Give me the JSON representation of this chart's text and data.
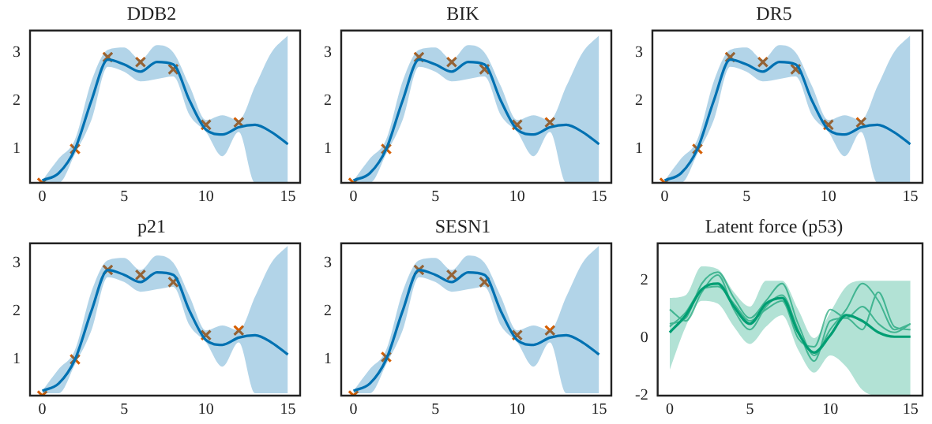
{
  "chart_data": [
    {
      "type": "line",
      "title": "DDB2",
      "x": [
        0,
        1,
        2,
        3,
        4,
        5,
        6,
        7,
        8,
        9,
        10,
        11,
        12,
        13,
        14,
        15
      ],
      "xlim": [
        -0.75,
        15.75
      ],
      "xticks": [
        0,
        5,
        10,
        15
      ],
      "ylim": [
        0.3,
        3.45
      ],
      "yticks": [
        1,
        2,
        3
      ],
      "grid": false,
      "legend": false,
      "marker": "none",
      "series": [
        {
          "color": "#0072b2",
          "values": [
            0.35,
            0.5,
            1.0,
            2.0,
            2.85,
            2.75,
            2.6,
            2.8,
            2.75,
            2.0,
            1.4,
            1.3,
            1.45,
            1.5,
            1.35,
            1.1
          ],
          "lower": [
            0.3,
            0.3,
            0.9,
            1.6,
            2.7,
            2.6,
            2.4,
            2.45,
            2.5,
            1.7,
            1.35,
            0.85,
            1.35,
            0.3,
            0.3,
            0.3
          ],
          "upper": [
            0.35,
            0.8,
            1.2,
            2.4,
            3.05,
            3.1,
            2.85,
            3.15,
            3.0,
            2.3,
            1.6,
            1.7,
            1.6,
            2.3,
            3.0,
            3.35
          ]
        },
        {
          "type": "scatter",
          "color": "#d55e00",
          "marker": "cross",
          "x": [
            0,
            2,
            4,
            6,
            8,
            10,
            12
          ],
          "values": [
            0.3,
            1.0,
            2.9,
            2.8,
            2.65,
            1.5,
            1.55
          ]
        }
      ]
    },
    {
      "type": "line",
      "title": "BIK",
      "x": [
        0,
        1,
        2,
        3,
        4,
        5,
        6,
        7,
        8,
        9,
        10,
        11,
        12,
        13,
        14,
        15
      ],
      "xlim": [
        -0.75,
        15.75
      ],
      "xticks": [
        0,
        5,
        10,
        15
      ],
      "ylim": [
        0.3,
        3.45
      ],
      "yticks": [
        1,
        2,
        3
      ],
      "grid": false,
      "legend": false,
      "marker": "none",
      "series": [
        {
          "color": "#0072b2",
          "values": [
            0.35,
            0.5,
            1.0,
            2.0,
            2.85,
            2.75,
            2.6,
            2.8,
            2.75,
            2.0,
            1.4,
            1.3,
            1.45,
            1.5,
            1.35,
            1.1
          ],
          "lower": [
            0.3,
            0.3,
            0.9,
            1.6,
            2.7,
            2.6,
            2.4,
            2.45,
            2.5,
            1.7,
            1.35,
            0.85,
            1.35,
            0.3,
            0.3,
            0.3
          ],
          "upper": [
            0.35,
            0.8,
            1.2,
            2.4,
            3.05,
            3.1,
            2.85,
            3.15,
            3.0,
            2.3,
            1.6,
            1.7,
            1.6,
            2.3,
            3.0,
            3.35
          ]
        },
        {
          "type": "scatter",
          "color": "#d55e00",
          "marker": "cross",
          "x": [
            0,
            2,
            4,
            6,
            8,
            10,
            12
          ],
          "values": [
            0.3,
            1.0,
            2.9,
            2.8,
            2.65,
            1.5,
            1.55
          ]
        }
      ]
    },
    {
      "type": "line",
      "title": "DR5",
      "x": [
        0,
        1,
        2,
        3,
        4,
        5,
        6,
        7,
        8,
        9,
        10,
        11,
        12,
        13,
        14,
        15
      ],
      "xlim": [
        -0.75,
        15.75
      ],
      "xticks": [
        0,
        5,
        10,
        15
      ],
      "ylim": [
        0.3,
        3.45
      ],
      "yticks": [
        1,
        2,
        3
      ],
      "grid": false,
      "legend": false,
      "marker": "none",
      "series": [
        {
          "color": "#0072b2",
          "values": [
            0.35,
            0.5,
            1.0,
            2.0,
            2.85,
            2.75,
            2.6,
            2.8,
            2.75,
            2.0,
            1.4,
            1.3,
            1.45,
            1.5,
            1.35,
            1.1
          ],
          "lower": [
            0.3,
            0.3,
            0.9,
            1.6,
            2.7,
            2.6,
            2.4,
            2.45,
            2.5,
            1.7,
            1.35,
            0.85,
            1.35,
            0.3,
            0.3,
            0.3
          ],
          "upper": [
            0.35,
            0.8,
            1.2,
            2.4,
            3.05,
            3.1,
            2.85,
            3.15,
            3.0,
            2.3,
            1.6,
            1.7,
            1.6,
            2.3,
            3.0,
            3.35
          ]
        },
        {
          "type": "scatter",
          "color": "#d55e00",
          "marker": "cross",
          "x": [
            0,
            2,
            4,
            6,
            8,
            10,
            12
          ],
          "values": [
            0.3,
            1.0,
            2.9,
            2.8,
            2.65,
            1.5,
            1.55
          ]
        }
      ]
    },
    {
      "type": "line",
      "title": "p21",
      "x": [
        0,
        1,
        2,
        3,
        4,
        5,
        6,
        7,
        8,
        9,
        10,
        11,
        12,
        13,
        14,
        15
      ],
      "xlim": [
        -0.75,
        15.75
      ],
      "xticks": [
        0,
        5,
        10,
        15
      ],
      "ylim": [
        0.25,
        3.4
      ],
      "yticks": [
        1,
        2,
        3
      ],
      "grid": false,
      "legend": false,
      "marker": "none",
      "series": [
        {
          "color": "#0072b2",
          "values": [
            0.35,
            0.5,
            1.0,
            2.0,
            2.85,
            2.75,
            2.6,
            2.8,
            2.75,
            2.0,
            1.4,
            1.3,
            1.45,
            1.5,
            1.35,
            1.1
          ],
          "lower": [
            0.3,
            0.3,
            0.9,
            1.6,
            2.7,
            2.6,
            2.4,
            2.45,
            2.5,
            1.7,
            1.35,
            0.85,
            1.35,
            0.3,
            0.3,
            0.3
          ],
          "upper": [
            0.35,
            0.8,
            1.2,
            2.4,
            3.05,
            3.1,
            2.85,
            3.15,
            3.0,
            2.3,
            1.6,
            1.7,
            1.6,
            2.3,
            3.0,
            3.35
          ]
        },
        {
          "type": "scatter",
          "color": "#d55e00",
          "marker": "cross",
          "x": [
            0,
            2,
            4,
            6,
            8,
            10,
            12
          ],
          "values": [
            0.25,
            1.0,
            2.85,
            2.75,
            2.6,
            1.5,
            1.6
          ]
        }
      ]
    },
    {
      "type": "line",
      "title": "SESN1",
      "x": [
        0,
        1,
        2,
        3,
        4,
        5,
        6,
        7,
        8,
        9,
        10,
        11,
        12,
        13,
        14,
        15
      ],
      "xlim": [
        -0.75,
        15.75
      ],
      "xticks": [
        0,
        5,
        10,
        15
      ],
      "ylim": [
        0.25,
        3.4
      ],
      "yticks": [
        1,
        2,
        3
      ],
      "grid": false,
      "legend": false,
      "marker": "none",
      "series": [
        {
          "color": "#0072b2",
          "values": [
            0.35,
            0.5,
            1.0,
            2.0,
            2.85,
            2.75,
            2.6,
            2.8,
            2.75,
            2.0,
            1.4,
            1.3,
            1.45,
            1.5,
            1.35,
            1.1
          ],
          "lower": [
            0.3,
            0.3,
            0.9,
            1.6,
            2.7,
            2.6,
            2.4,
            2.45,
            2.5,
            1.7,
            1.35,
            0.85,
            1.35,
            0.3,
            0.3,
            0.3
          ],
          "upper": [
            0.35,
            0.8,
            1.2,
            2.4,
            3.05,
            3.1,
            2.85,
            3.15,
            3.0,
            2.3,
            1.6,
            1.7,
            1.6,
            2.3,
            3.0,
            3.35
          ]
        },
        {
          "type": "scatter",
          "color": "#d55e00",
          "marker": "cross",
          "x": [
            0,
            2,
            4,
            6,
            8,
            10,
            12
          ],
          "values": [
            0.25,
            1.05,
            2.85,
            2.75,
            2.6,
            1.5,
            1.6
          ]
        }
      ]
    },
    {
      "type": "line",
      "title": "Latent force (p53)",
      "x": [
        0,
        1,
        2,
        3,
        4,
        5,
        6,
        7,
        8,
        9,
        10,
        11,
        12,
        13,
        14,
        15
      ],
      "xlim": [
        -0.75,
        15.75
      ],
      "xticks": [
        0,
        5,
        10,
        15
      ],
      "ylim": [
        -2,
        3.3
      ],
      "yticks": [
        -2,
        0,
        2
      ],
      "grid": false,
      "legend": false,
      "marker": "none",
      "series": [
        {
          "color": "#009e73",
          "values": [
            0.2,
            0.8,
            1.7,
            1.9,
            1.1,
            0.5,
            1.2,
            1.4,
            0.2,
            -0.5,
            0.1,
            0.8,
            0.6,
            0.2,
            0.05,
            0.05
          ],
          "lower": [
            -1.1,
            0.4,
            1.3,
            1.2,
            0.4,
            -0.2,
            0.4,
            0.8,
            -0.4,
            -1.2,
            -0.6,
            -1.0,
            -1.8,
            -2,
            -2,
            -2
          ],
          "upper": [
            1.4,
            1.5,
            2.5,
            2.4,
            1.6,
            1.1,
            2.0,
            2.0,
            1.0,
            0.0,
            0.9,
            1.8,
            2.0,
            2.0,
            2.0,
            2.0
          ]
        },
        {
          "color": "#5fbf9f",
          "values": [
            0.5,
            0.7,
            1.9,
            2.3,
            1.4,
            0.7,
            1.3,
            1.9,
            0.5,
            -0.6,
            0.3,
            1.0,
            1.9,
            1.3,
            0.3,
            0.5
          ]
        },
        {
          "color": "#5fbf9f",
          "values": [
            1.0,
            0.6,
            1.6,
            2.2,
            1.0,
            0.3,
            1.1,
            1.5,
            0.3,
            -0.8,
            0.6,
            0.7,
            0.3,
            1.6,
            0.4,
            0.3
          ]
        },
        {
          "color": "#5fbf9f",
          "values": [
            0.4,
            0.9,
            1.7,
            1.8,
            1.2,
            0.6,
            1.0,
            1.3,
            0.0,
            -0.3,
            1.0,
            0.7,
            1.1,
            0.5,
            0.2,
            0.5
          ]
        }
      ]
    }
  ]
}
